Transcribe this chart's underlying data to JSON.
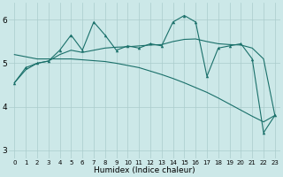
{
  "xlabel": "Humidex (Indice chaleur)",
  "bg_color": "#cce8e8",
  "line_color": "#1a706a",
  "grid_color": "#aacccc",
  "xlim": [
    -0.5,
    23.5
  ],
  "ylim": [
    2.8,
    6.4
  ],
  "yticks": [
    3,
    4,
    5,
    6
  ],
  "xticks": [
    0,
    1,
    2,
    3,
    4,
    5,
    6,
    7,
    8,
    9,
    10,
    11,
    12,
    13,
    14,
    15,
    16,
    17,
    18,
    19,
    20,
    21,
    22,
    23
  ],
  "series_jagged": [
    4.55,
    4.9,
    5.0,
    5.05,
    5.3,
    5.65,
    5.3,
    5.95,
    5.65,
    5.3,
    5.4,
    5.35,
    5.45,
    5.4,
    5.95,
    6.1,
    5.95,
    4.7,
    5.35,
    5.4,
    5.45,
    5.1,
    3.4,
    3.8
  ],
  "series_linear": [
    5.2,
    5.15,
    5.1,
    5.1,
    5.1,
    5.1,
    5.08,
    5.06,
    5.04,
    5.0,
    4.95,
    4.9,
    4.82,
    4.74,
    4.65,
    4.55,
    4.44,
    4.33,
    4.2,
    4.06,
    3.92,
    3.78,
    3.65,
    3.8
  ],
  "series_smooth": [
    4.55,
    4.85,
    5.0,
    5.05,
    5.2,
    5.3,
    5.25,
    5.3,
    5.35,
    5.37,
    5.38,
    5.4,
    5.42,
    5.43,
    5.5,
    5.55,
    5.56,
    5.5,
    5.45,
    5.43,
    5.42,
    5.35,
    5.1,
    3.8
  ]
}
